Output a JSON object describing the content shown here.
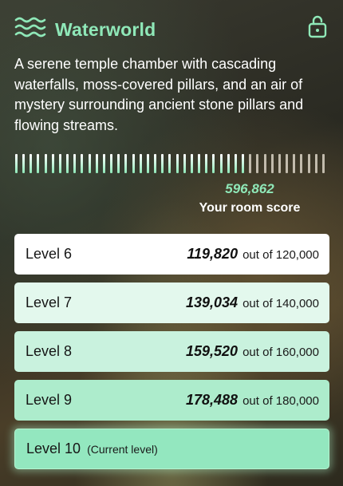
{
  "room": {
    "title": "Waterworld",
    "description": "A serene temple chamber with cascading waterfalls, moss-covered pillars, and an air of mystery surrounding ancient stone pillars and flowing streams.",
    "title_icon": "waves-icon",
    "status_icon": "unlocked-padlock-icon"
  },
  "progress": {
    "filled_fraction": 0.7442,
    "filled_color": "#8fe8b8",
    "empty_color": "#d9d2c4"
  },
  "score": {
    "value": "596,862",
    "label": "Your room score"
  },
  "levels": [
    {
      "name": "Level 6",
      "points": "119,820",
      "outof": "out of 120,000",
      "bg": "#ffffff"
    },
    {
      "name": "Level 7",
      "points": "139,034",
      "outof": "out of 140,000",
      "bg": "#e3f8ed"
    },
    {
      "name": "Level 8",
      "points": "159,520",
      "outof": "out of 160,000",
      "bg": "#c9f2de"
    },
    {
      "name": "Level 9",
      "points": "178,488",
      "outof": "out of 180,000",
      "bg": "#adeccc"
    },
    {
      "name": "Level 10",
      "current_label": "(Current level)",
      "bg": "#93e7bf"
    }
  ],
  "colors": {
    "accent": "#8fe8b8",
    "text_light": "#ffffff"
  }
}
